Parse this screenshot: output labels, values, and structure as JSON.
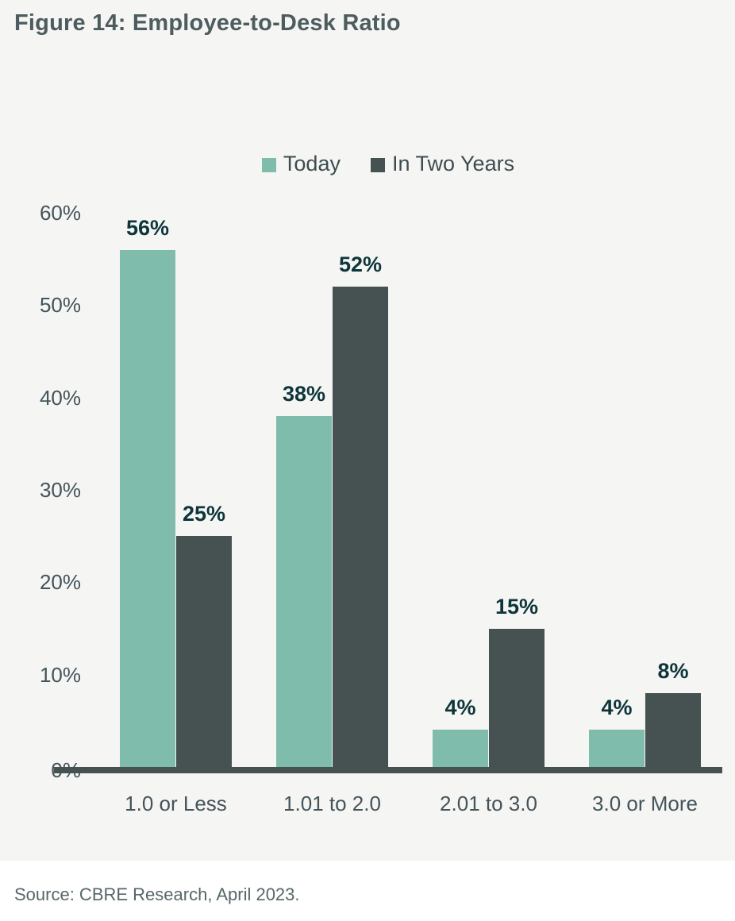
{
  "figure": {
    "title": "Figure 14: Employee-to-Desk Ratio",
    "source": "Source: CBRE Research, April 2023."
  },
  "chart_data": {
    "type": "bar",
    "title": "Figure 14: Employee-to-Desk Ratio",
    "categories": [
      "1.0 or Less",
      "1.01 to 2.0",
      "2.01 to 3.0",
      "3.0 or More"
    ],
    "series": [
      {
        "name": "Today",
        "color": "#7fbcab",
        "values": [
          56,
          38,
          4,
          4
        ],
        "labels": [
          "56%",
          "38%",
          "4%",
          "4%"
        ]
      },
      {
        "name": "In Two Years",
        "color": "#455251",
        "values": [
          25,
          52,
          15,
          8
        ],
        "labels": [
          "25%",
          "52%",
          "15%",
          "8%"
        ]
      }
    ],
    "xlabel": "",
    "ylabel": "",
    "ylim": [
      0,
      60
    ],
    "y_ticks": [
      "60%",
      "50%",
      "40%",
      "30%",
      "20%",
      "10%",
      "0%"
    ],
    "y_tick_values": [
      60,
      50,
      40,
      30,
      20,
      10,
      0
    ],
    "grid": false,
    "legend_position": "top-center",
    "data_labels": true,
    "source": "Source: CBRE Research, April 2023."
  },
  "colors": {
    "card_background": "#f5f5f4",
    "page_background": "#ffffff",
    "title_text": "#4d5c5e",
    "axis_line": "#455251",
    "tick_label": "#44545a",
    "data_label": "#0e363a",
    "legend_text": "#3d4d4f",
    "source_text": "#576769",
    "series_today": "#7fbcab",
    "series_in_two_years": "#455251"
  }
}
